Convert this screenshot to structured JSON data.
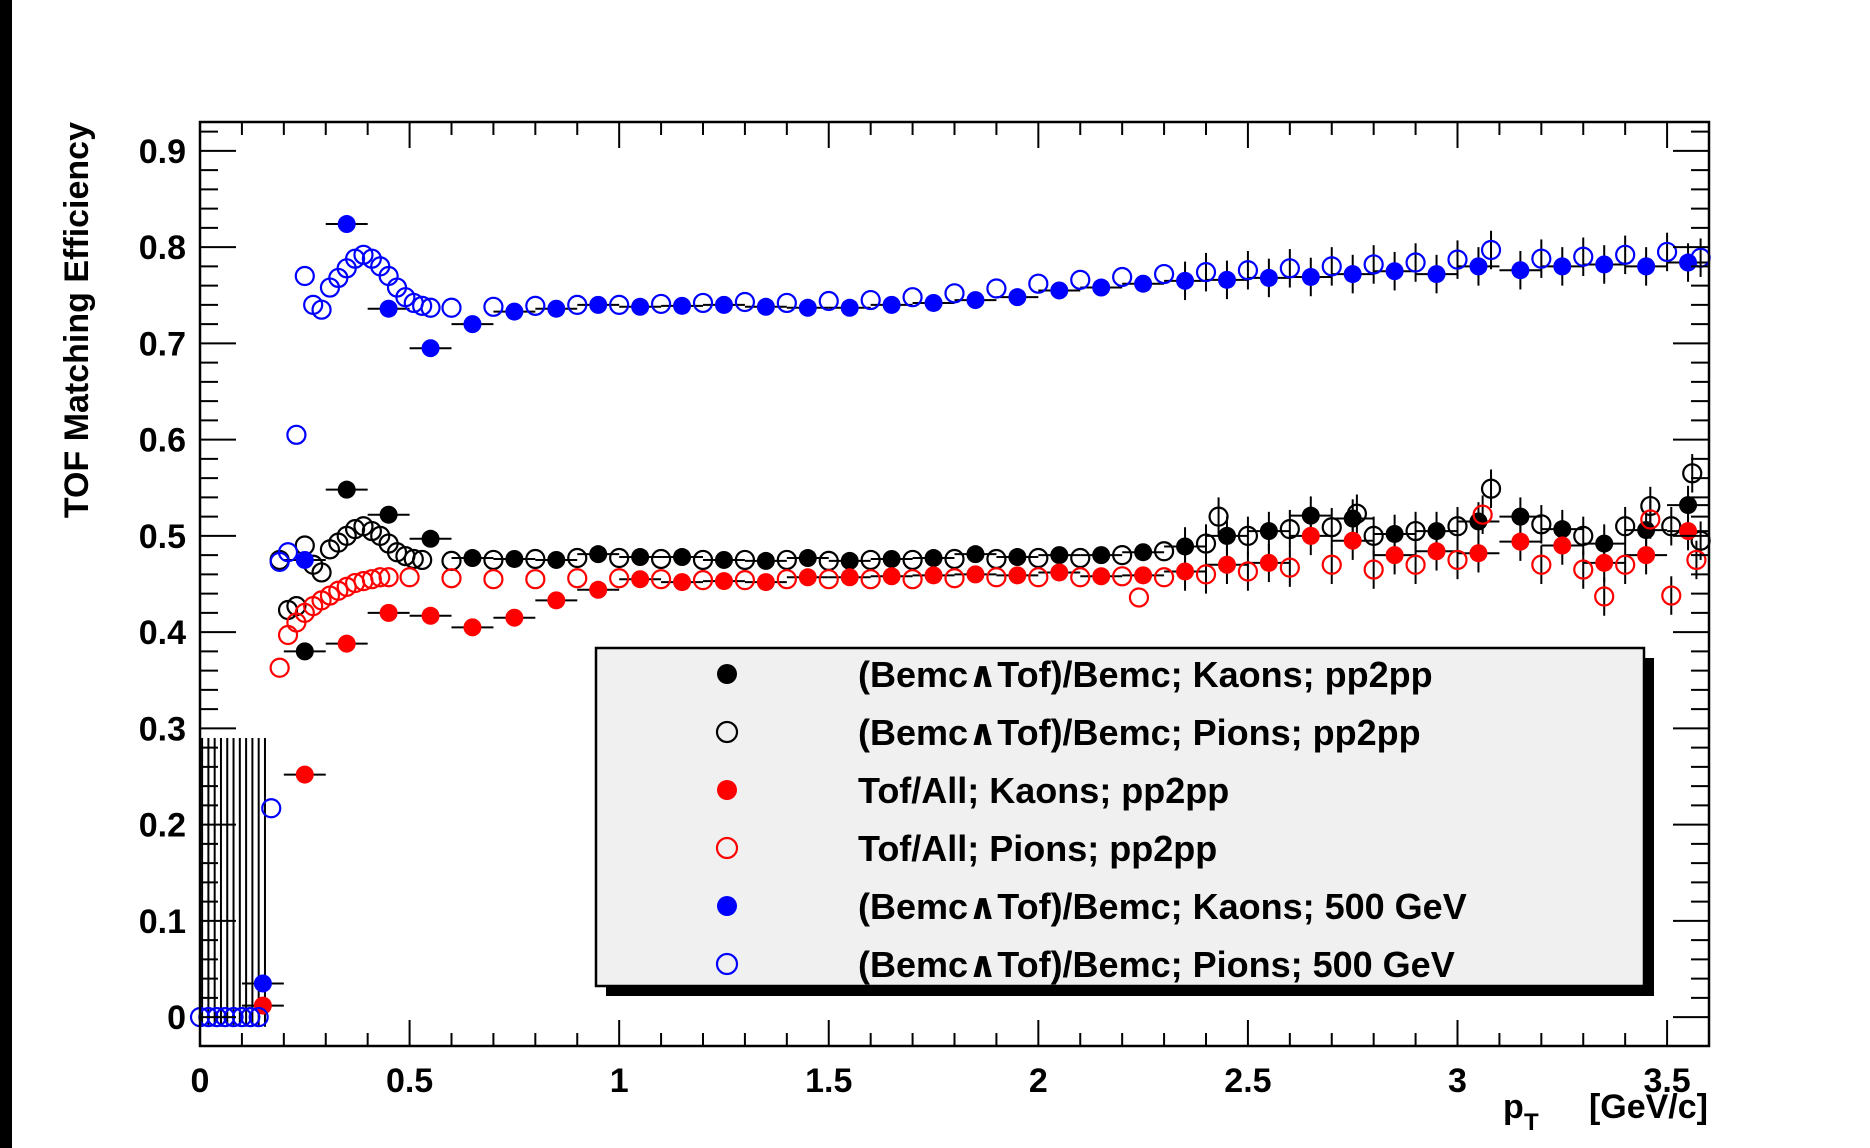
{
  "chart_data": {
    "type": "scatter",
    "xlabel": "p",
    "xlabel_sub": "T",
    "xlabel_unit": "[GeV/c]",
    "ylabel": "TOF Matching Efficiency",
    "xlim": [
      0,
      3.6
    ],
    "ylim": [
      -0.03,
      0.93
    ],
    "x_ticks": [
      {
        "v": 0,
        "label": "0"
      },
      {
        "v": 0.5,
        "label": "0.5"
      },
      {
        "v": 1,
        "label": "1"
      },
      {
        "v": 1.5,
        "label": "1.5"
      },
      {
        "v": 2,
        "label": "2"
      },
      {
        "v": 2.5,
        "label": "2.5"
      },
      {
        "v": 3,
        "label": "3"
      },
      {
        "v": 3.5,
        "label": "3.5"
      }
    ],
    "y_ticks": [
      {
        "v": 0,
        "label": "0"
      },
      {
        "v": 0.1,
        "label": "0.1"
      },
      {
        "v": 0.2,
        "label": "0.2"
      },
      {
        "v": 0.3,
        "label": "0.3"
      },
      {
        "v": 0.4,
        "label": "0.4"
      },
      {
        "v": 0.5,
        "label": "0.5"
      },
      {
        "v": 0.6,
        "label": "0.6"
      },
      {
        "v": 0.7,
        "label": "0.7"
      },
      {
        "v": 0.8,
        "label": "0.8"
      },
      {
        "v": 0.9,
        "label": "0.9"
      }
    ],
    "grid": false,
    "legend_position": "bottom-right",
    "series": [
      {
        "name": "(Bemc∧Tof)/Bemc; Kaons; pp2pp",
        "color": "#000000",
        "marker": "filled",
        "points": [
          [
            0.25,
            0.38
          ],
          [
            0.35,
            0.548
          ],
          [
            0.45,
            0.522
          ],
          [
            0.55,
            0.497
          ],
          [
            0.65,
            0.477
          ],
          [
            0.75,
            0.476
          ],
          [
            0.85,
            0.475
          ],
          [
            0.95,
            0.481
          ],
          [
            1.05,
            0.478
          ],
          [
            1.15,
            0.478
          ],
          [
            1.25,
            0.475
          ],
          [
            1.35,
            0.474
          ],
          [
            1.45,
            0.477
          ],
          [
            1.55,
            0.474
          ],
          [
            1.65,
            0.476
          ],
          [
            1.75,
            0.477
          ],
          [
            1.85,
            0.481
          ],
          [
            1.95,
            0.478
          ],
          [
            2.05,
            0.48
          ],
          [
            2.15,
            0.48
          ],
          [
            2.25,
            0.483
          ],
          [
            2.35,
            0.489
          ],
          [
            2.45,
            0.5
          ],
          [
            2.55,
            0.505
          ],
          [
            2.65,
            0.521
          ],
          [
            2.75,
            0.518
          ],
          [
            2.85,
            0.502
          ],
          [
            2.95,
            0.505
          ],
          [
            3.05,
            0.515
          ],
          [
            3.15,
            0.52
          ],
          [
            3.25,
            0.507
          ],
          [
            3.35,
            0.492
          ],
          [
            3.45,
            0.506
          ],
          [
            3.55,
            0.532
          ]
        ],
        "xerr": 0.05
      },
      {
        "name": "(Bemc∧Tof)/Bemc; Pions; pp2pp",
        "color": "#000000",
        "marker": "open",
        "points": [
          [
            0.19,
            0.475
          ],
          [
            0.21,
            0.423
          ],
          [
            0.23,
            0.427
          ],
          [
            0.25,
            0.49
          ],
          [
            0.27,
            0.47
          ],
          [
            0.29,
            0.462
          ],
          [
            0.31,
            0.486
          ],
          [
            0.33,
            0.493
          ],
          [
            0.35,
            0.5
          ],
          [
            0.37,
            0.507
          ],
          [
            0.39,
            0.51
          ],
          [
            0.41,
            0.505
          ],
          [
            0.43,
            0.5
          ],
          [
            0.45,
            0.492
          ],
          [
            0.47,
            0.483
          ],
          [
            0.49,
            0.479
          ],
          [
            0.51,
            0.476
          ],
          [
            0.53,
            0.475
          ],
          [
            0.6,
            0.474
          ],
          [
            0.7,
            0.475
          ],
          [
            0.8,
            0.476
          ],
          [
            0.9,
            0.477
          ],
          [
            1.0,
            0.477
          ],
          [
            1.1,
            0.476
          ],
          [
            1.2,
            0.475
          ],
          [
            1.3,
            0.475
          ],
          [
            1.4,
            0.475
          ],
          [
            1.5,
            0.474
          ],
          [
            1.6,
            0.475
          ],
          [
            1.7,
            0.475
          ],
          [
            1.8,
            0.476
          ],
          [
            1.9,
            0.476
          ],
          [
            2.0,
            0.477
          ],
          [
            2.1,
            0.477
          ],
          [
            2.2,
            0.48
          ],
          [
            2.3,
            0.484
          ],
          [
            2.4,
            0.492
          ],
          [
            2.43,
            0.52
          ],
          [
            2.5,
            0.5
          ],
          [
            2.6,
            0.507
          ],
          [
            2.7,
            0.509
          ],
          [
            2.76,
            0.523
          ],
          [
            2.8,
            0.5
          ],
          [
            2.9,
            0.505
          ],
          [
            3.0,
            0.51
          ],
          [
            3.08,
            0.549
          ],
          [
            3.2,
            0.512
          ],
          [
            3.3,
            0.5
          ],
          [
            3.4,
            0.51
          ],
          [
            3.46,
            0.531
          ],
          [
            3.51,
            0.51
          ],
          [
            3.56,
            0.565
          ],
          [
            3.58,
            0.495
          ]
        ],
        "xerr": 0
      },
      {
        "name": "Tof/All; Kaons; pp2pp",
        "color": "#ff0000",
        "marker": "filled",
        "points": [
          [
            0.15,
            0.012
          ],
          [
            0.25,
            0.252
          ],
          [
            0.35,
            0.388
          ],
          [
            0.45,
            0.42
          ],
          [
            0.55,
            0.417
          ],
          [
            0.65,
            0.405
          ],
          [
            0.75,
            0.415
          ],
          [
            0.85,
            0.433
          ],
          [
            0.95,
            0.444
          ],
          [
            1.05,
            0.455
          ],
          [
            1.15,
            0.452
          ],
          [
            1.25,
            0.453
          ],
          [
            1.35,
            0.452
          ],
          [
            1.45,
            0.457
          ],
          [
            1.55,
            0.457
          ],
          [
            1.65,
            0.458
          ],
          [
            1.75,
            0.459
          ],
          [
            1.85,
            0.46
          ],
          [
            1.95,
            0.459
          ],
          [
            2.05,
            0.462
          ],
          [
            2.15,
            0.458
          ],
          [
            2.25,
            0.459
          ],
          [
            2.35,
            0.463
          ],
          [
            2.45,
            0.47
          ],
          [
            2.55,
            0.472
          ],
          [
            2.65,
            0.5
          ],
          [
            2.75,
            0.495
          ],
          [
            2.85,
            0.48
          ],
          [
            2.95,
            0.484
          ],
          [
            3.05,
            0.482
          ],
          [
            3.15,
            0.494
          ],
          [
            3.25,
            0.49
          ],
          [
            3.35,
            0.472
          ],
          [
            3.45,
            0.48
          ],
          [
            3.55,
            0.505
          ]
        ],
        "xerr": 0.05
      },
      {
        "name": "Tof/All; Pions; pp2pp",
        "color": "#ff0000",
        "marker": "open",
        "points": [
          [
            0.19,
            0.363
          ],
          [
            0.21,
            0.397
          ],
          [
            0.23,
            0.41
          ],
          [
            0.25,
            0.42
          ],
          [
            0.27,
            0.427
          ],
          [
            0.29,
            0.433
          ],
          [
            0.31,
            0.438
          ],
          [
            0.33,
            0.443
          ],
          [
            0.35,
            0.447
          ],
          [
            0.37,
            0.451
          ],
          [
            0.39,
            0.453
          ],
          [
            0.41,
            0.455
          ],
          [
            0.43,
            0.457
          ],
          [
            0.45,
            0.457
          ],
          [
            0.5,
            0.457
          ],
          [
            0.6,
            0.456
          ],
          [
            0.7,
            0.455
          ],
          [
            0.8,
            0.455
          ],
          [
            0.9,
            0.456
          ],
          [
            1.0,
            0.456
          ],
          [
            1.1,
            0.455
          ],
          [
            1.2,
            0.454
          ],
          [
            1.3,
            0.454
          ],
          [
            1.4,
            0.455
          ],
          [
            1.5,
            0.455
          ],
          [
            1.6,
            0.455
          ],
          [
            1.7,
            0.455
          ],
          [
            1.8,
            0.456
          ],
          [
            1.9,
            0.457
          ],
          [
            2.0,
            0.457
          ],
          [
            2.1,
            0.457
          ],
          [
            2.2,
            0.458
          ],
          [
            2.24,
            0.436
          ],
          [
            2.3,
            0.457
          ],
          [
            2.4,
            0.46
          ],
          [
            2.5,
            0.463
          ],
          [
            2.6,
            0.467
          ],
          [
            2.7,
            0.47
          ],
          [
            2.8,
            0.465
          ],
          [
            2.9,
            0.47
          ],
          [
            3.0,
            0.475
          ],
          [
            3.06,
            0.522
          ],
          [
            3.2,
            0.47
          ],
          [
            3.3,
            0.465
          ],
          [
            3.35,
            0.437
          ],
          [
            3.4,
            0.47
          ],
          [
            3.46,
            0.517
          ],
          [
            3.51,
            0.438
          ],
          [
            3.57,
            0.475
          ]
        ],
        "xerr": 0
      },
      {
        "name": "(Bemc∧Tof)/Bemc; Kaons; 500 GeV",
        "color": "#0000ff",
        "marker": "filled",
        "points": [
          [
            0.15,
            0.035
          ],
          [
            0.25,
            0.475
          ],
          [
            0.35,
            0.824
          ],
          [
            0.45,
            0.736
          ],
          [
            0.55,
            0.695
          ],
          [
            0.65,
            0.72
          ],
          [
            0.75,
            0.733
          ],
          [
            0.85,
            0.736
          ],
          [
            0.95,
            0.74
          ],
          [
            1.05,
            0.738
          ],
          [
            1.15,
            0.739
          ],
          [
            1.25,
            0.74
          ],
          [
            1.35,
            0.738
          ],
          [
            1.45,
            0.737
          ],
          [
            1.55,
            0.737
          ],
          [
            1.65,
            0.74
          ],
          [
            1.75,
            0.742
          ],
          [
            1.85,
            0.745
          ],
          [
            1.95,
            0.748
          ],
          [
            2.05,
            0.755
          ],
          [
            2.15,
            0.758
          ],
          [
            2.25,
            0.762
          ],
          [
            2.35,
            0.765
          ],
          [
            2.45,
            0.766
          ],
          [
            2.55,
            0.768
          ],
          [
            2.65,
            0.769
          ],
          [
            2.75,
            0.772
          ],
          [
            2.85,
            0.775
          ],
          [
            2.95,
            0.772
          ],
          [
            3.05,
            0.78
          ],
          [
            3.15,
            0.776
          ],
          [
            3.25,
            0.78
          ],
          [
            3.35,
            0.782
          ],
          [
            3.45,
            0.78
          ],
          [
            3.55,
            0.784
          ]
        ],
        "xerr": 0.05
      },
      {
        "name": "(Bemc∧Tof)/Bemc; Pions; 500 GeV",
        "color": "#0000ff",
        "marker": "open",
        "points": [
          [
            0.0,
            0.0
          ],
          [
            0.02,
            0.0
          ],
          [
            0.04,
            0.0
          ],
          [
            0.06,
            0.0
          ],
          [
            0.08,
            0.0
          ],
          [
            0.1,
            0.0
          ],
          [
            0.12,
            0.0
          ],
          [
            0.14,
            0.0
          ],
          [
            0.17,
            0.217
          ],
          [
            0.19,
            0.473
          ],
          [
            0.21,
            0.483
          ],
          [
            0.23,
            0.605
          ],
          [
            0.25,
            0.77
          ],
          [
            0.27,
            0.74
          ],
          [
            0.29,
            0.735
          ],
          [
            0.31,
            0.758
          ],
          [
            0.33,
            0.768
          ],
          [
            0.35,
            0.778
          ],
          [
            0.37,
            0.788
          ],
          [
            0.39,
            0.792
          ],
          [
            0.41,
            0.788
          ],
          [
            0.43,
            0.78
          ],
          [
            0.45,
            0.77
          ],
          [
            0.47,
            0.758
          ],
          [
            0.49,
            0.748
          ],
          [
            0.51,
            0.742
          ],
          [
            0.53,
            0.739
          ],
          [
            0.55,
            0.737
          ],
          [
            0.6,
            0.737
          ],
          [
            0.7,
            0.738
          ],
          [
            0.8,
            0.739
          ],
          [
            0.9,
            0.74
          ],
          [
            1.0,
            0.74
          ],
          [
            1.1,
            0.741
          ],
          [
            1.2,
            0.742
          ],
          [
            1.3,
            0.743
          ],
          [
            1.4,
            0.742
          ],
          [
            1.5,
            0.744
          ],
          [
            1.6,
            0.745
          ],
          [
            1.7,
            0.748
          ],
          [
            1.8,
            0.752
          ],
          [
            1.9,
            0.757
          ],
          [
            2.0,
            0.762
          ],
          [
            2.1,
            0.766
          ],
          [
            2.2,
            0.769
          ],
          [
            2.3,
            0.772
          ],
          [
            2.4,
            0.774
          ],
          [
            2.5,
            0.776
          ],
          [
            2.6,
            0.778
          ],
          [
            2.7,
            0.78
          ],
          [
            2.8,
            0.782
          ],
          [
            2.9,
            0.784
          ],
          [
            3.0,
            0.787
          ],
          [
            3.08,
            0.797
          ],
          [
            3.2,
            0.788
          ],
          [
            3.3,
            0.79
          ],
          [
            3.4,
            0.792
          ],
          [
            3.5,
            0.795
          ],
          [
            3.58,
            0.789
          ]
        ],
        "xerr": 0
      }
    ]
  }
}
